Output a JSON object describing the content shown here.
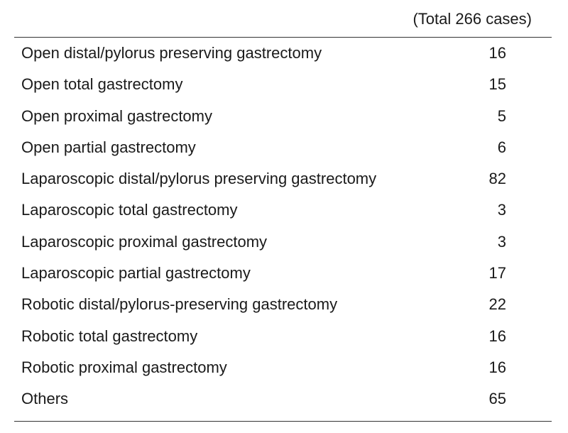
{
  "table": {
    "total_label": "(Total 266 cases)",
    "rows": [
      {
        "name": "Open distal/pylorus preserving gastrectomy",
        "count": "16"
      },
      {
        "name": "Open total gastrectomy",
        "count": "15"
      },
      {
        "name": "Open proximal gastrectomy",
        "count": "5"
      },
      {
        "name": "Open partial gastrectomy",
        "count": "6"
      },
      {
        "name": "Laparoscopic distal/pylorus preserving gastrectomy",
        "count": "82"
      },
      {
        "name": "Laparoscopic total gastrectomy",
        "count": "3"
      },
      {
        "name": "Laparoscopic proximal gastrectomy",
        "count": "3"
      },
      {
        "name": "Laparoscopic partial gastrectomy",
        "count": "17"
      },
      {
        "name": "Robotic distal/pylorus-preserving gastrectomy",
        "count": "22"
      },
      {
        "name": "Robotic total gastrectomy",
        "count": "16"
      },
      {
        "name": "Robotic proximal gastrectomy",
        "count": "16"
      },
      {
        "name": "Others",
        "count": "65"
      }
    ]
  }
}
